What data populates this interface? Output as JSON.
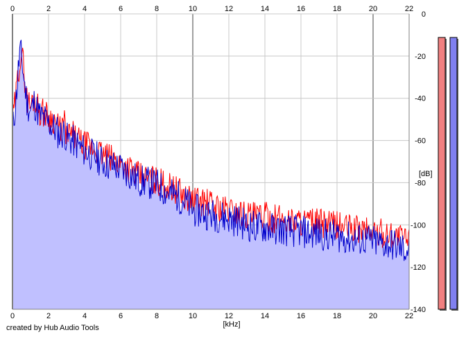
{
  "app": {
    "credit": "created by Hub Audio Tools"
  },
  "meters": {
    "left_color": "#f08080",
    "right_color": "#8080f0",
    "left_level": 1.0,
    "right_level": 1.0
  },
  "chart_data": {
    "type": "line",
    "title": "",
    "xlabel": "[kHz]",
    "ylabel": "[dB]",
    "xlim": [
      0,
      22
    ],
    "ylim": [
      -140,
      0
    ],
    "x_ticks": [
      "0",
      "2",
      "4",
      "6",
      "8",
      "10",
      "12",
      "14",
      "16",
      "18",
      "20",
      "22"
    ],
    "y_ticks": [
      "0",
      "-20",
      "-40",
      "-60",
      "-80",
      "-100",
      "-120",
      "-140"
    ],
    "grid": true,
    "colors": {
      "red": "#ff0000",
      "blue": "#0000cc",
      "fill": "#c0c0ff",
      "grid": "#c8c8c8",
      "grid_major": "#a0a0a0"
    },
    "series": [
      {
        "color": "#ff0000",
        "x": [
          0.0,
          0.2,
          0.4,
          0.5,
          0.6,
          0.8,
          1.0,
          1.2,
          1.5,
          1.8,
          2.0,
          2.3,
          2.6,
          2.9,
          3.0,
          3.3,
          3.6,
          4.0,
          4.5,
          5.0,
          5.5,
          6.0,
          6.5,
          7.0,
          7.5,
          8.0,
          8.5,
          9.0,
          9.5,
          10.0,
          10.5,
          11.0,
          11.5,
          12.0,
          12.5,
          13.0,
          13.5,
          14.0,
          14.5,
          15.0,
          15.5,
          16.0,
          16.5,
          17.0,
          17.5,
          18.0,
          18.5,
          19.0,
          19.5,
          20.0,
          20.5,
          21.0,
          21.5,
          22.0
        ],
        "y": [
          -52,
          -38,
          -22,
          -18,
          -24,
          -40,
          -44,
          -39,
          -46,
          -47,
          -49,
          -50,
          -55,
          -52,
          -58,
          -57,
          -60,
          -62,
          -64,
          -67,
          -69,
          -71,
          -73,
          -77,
          -78,
          -79,
          -81,
          -83,
          -86,
          -88,
          -89,
          -90,
          -92,
          -93,
          -94,
          -95,
          -96,
          -96,
          -97,
          -97,
          -98,
          -98,
          -99,
          -99,
          -100,
          -100,
          -101,
          -102,
          -102,
          -103,
          -104,
          -104,
          -106,
          -107
        ]
      },
      {
        "color": "#0000cc",
        "x": [
          0.0,
          0.2,
          0.4,
          0.5,
          0.6,
          0.8,
          1.0,
          1.2,
          1.5,
          1.8,
          2.0,
          2.3,
          2.6,
          2.9,
          3.0,
          3.3,
          3.6,
          4.0,
          4.5,
          5.0,
          5.5,
          6.0,
          6.5,
          7.0,
          7.5,
          8.0,
          8.5,
          9.0,
          9.5,
          10.0,
          10.5,
          11.0,
          11.5,
          12.0,
          12.5,
          13.0,
          13.5,
          14.0,
          14.5,
          15.0,
          15.5,
          16.0,
          16.5,
          17.0,
          17.5,
          18.0,
          18.5,
          19.0,
          19.5,
          20.0,
          20.5,
          21.0,
          21.5,
          22.0
        ],
        "y": [
          -56,
          -40,
          -18,
          -20,
          -28,
          -42,
          -46,
          -42,
          -48,
          -50,
          -52,
          -54,
          -57,
          -56,
          -59,
          -60,
          -62,
          -65,
          -67,
          -70,
          -72,
          -73,
          -76,
          -79,
          -80,
          -81,
          -84,
          -86,
          -88,
          -93,
          -94,
          -95,
          -96,
          -97,
          -98,
          -100,
          -101,
          -101,
          -102,
          -102,
          -103,
          -103,
          -104,
          -104,
          -105,
          -105,
          -106,
          -107,
          -107,
          -108,
          -109,
          -109,
          -111,
          -112
        ]
      }
    ]
  }
}
